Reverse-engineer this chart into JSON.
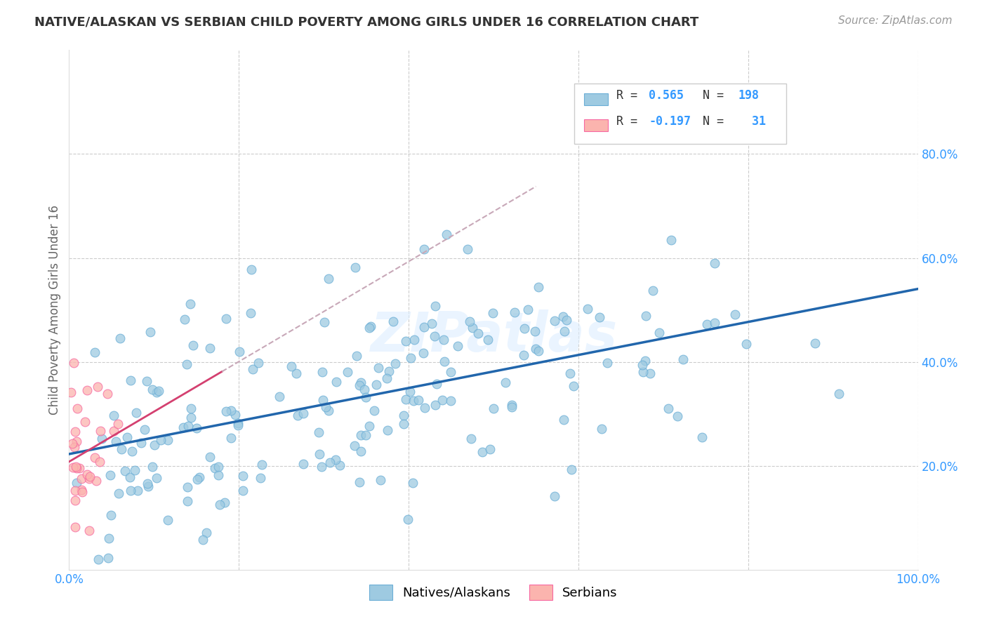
{
  "title": "NATIVE/ALASKAN VS SERBIAN CHILD POVERTY AMONG GIRLS UNDER 16 CORRELATION CHART",
  "source": "Source: ZipAtlas.com",
  "ylabel": "Child Poverty Among Girls Under 16",
  "xlim": [
    0,
    1.0
  ],
  "ylim": [
    0,
    1.0
  ],
  "blue_color": "#9ecae1",
  "blue_edge_color": "#6baed6",
  "pink_color": "#fbb4ae",
  "pink_edge_color": "#f768a1",
  "blue_line_color": "#2166ac",
  "pink_line_color": "#d44070",
  "pink_dash_color": "#c8a8b8",
  "watermark": "ZIPatlas",
  "R1": 0.565,
  "N1": 198,
  "R2": -0.197,
  "N2": 31,
  "blue_seed": 12,
  "pink_seed": 99,
  "background_color": "#ffffff",
  "grid_color": "#cccccc",
  "title_color": "#333333",
  "tick_color": "#3399ff",
  "ylabel_color": "#666666",
  "legend_blue_r": "0.565",
  "legend_blue_n": "198",
  "legend_pink_r": "-0.197",
  "legend_pink_n": "31"
}
